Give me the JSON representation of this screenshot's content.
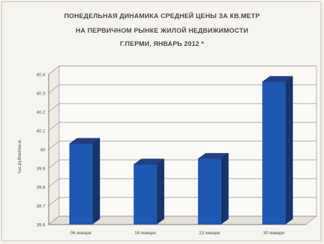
{
  "chart_data": {
    "type": "bar",
    "title_lines": [
      "ПОНЕДЕЛЬНАЯ ДИНАМИКА СРЕДНЕЙ ЦЕНЫ ЗА КВ.МЕТР",
      "НА ПЕРВИЧНОМ РЫНКЕ ЖИЛОЙ НЕДВИЖИМОСТИ",
      "Г.ПЕРМИ, ЯНВАРЬ 2012 *"
    ],
    "xlabel": "",
    "ylabel": "тыс.рублей/кв.м.",
    "categories": [
      "06 января",
      "16 января",
      "23 января",
      "30 января"
    ],
    "values": [
      40.03,
      39.92,
      39.95,
      40.36
    ],
    "ylim": [
      39.6,
      40.4
    ],
    "yticks": [
      "39.6",
      "39.7",
      "39.8",
      "39.9",
      "40",
      "40.1",
      "40.2",
      "40.3",
      "40.4"
    ],
    "grid": true,
    "bar_color": "#1f57b3",
    "bar_side_color": "#16356e",
    "bar_top_color": "#233e82"
  }
}
